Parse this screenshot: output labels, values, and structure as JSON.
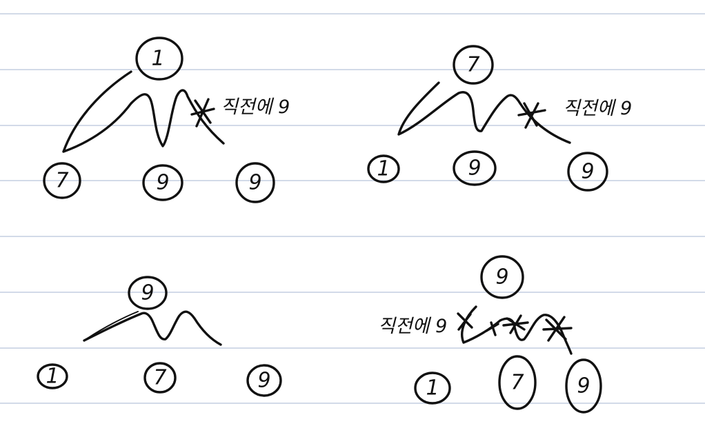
{
  "diagrams": [
    {
      "root": "1",
      "children": [
        "7",
        "9",
        "9"
      ],
      "note": "직전에 9",
      "note_marked_child": 3
    },
    {
      "root": "7",
      "children": [
        "1",
        "9",
        "9"
      ],
      "note": "직전에 9",
      "note_marked_child": 3
    },
    {
      "root": "9",
      "children": [
        "1",
        "7",
        "9"
      ],
      "note": "",
      "note_marked_child": 0
    },
    {
      "root": "9",
      "children": [
        "1",
        "7",
        "9"
      ],
      "note": "직전에 9",
      "note_marked_child": 0
    }
  ]
}
